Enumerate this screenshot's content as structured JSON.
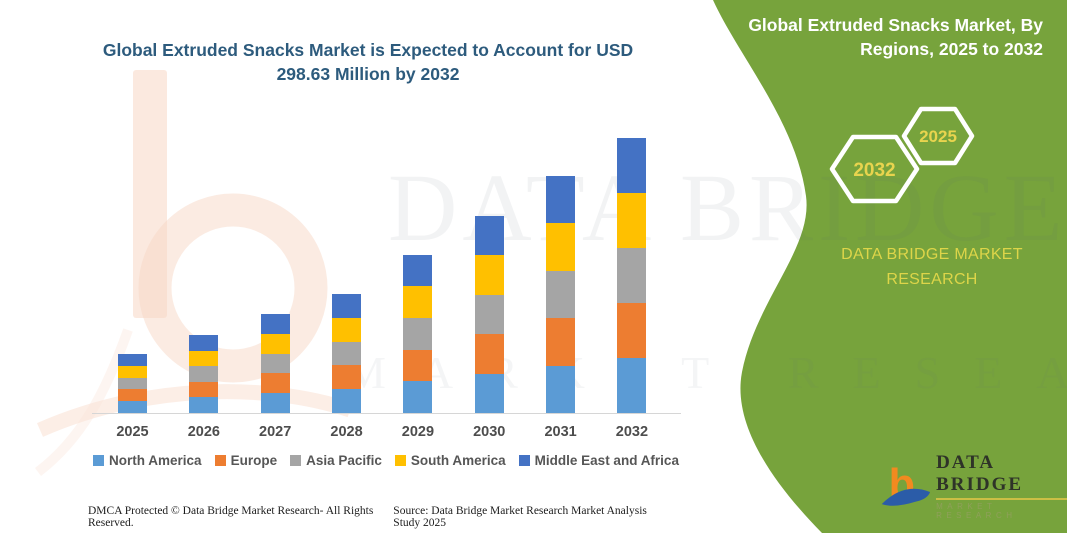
{
  "header": {
    "title": "Global Extruded Snacks Market is Expected to Account for USD 298.63 Million by 2032"
  },
  "panel": {
    "title": "Global Extruded Snacks Market, By Regions, 2025 to 2032",
    "hex_back_year": "2032",
    "hex_front_year": "2025",
    "brand_caption": "DATA BRIDGE MARKET RESEARCH"
  },
  "chart_data": {
    "type": "bar",
    "stacked": true,
    "title": "Global Extruded Snacks Market is Expected to Account for USD 298.63 Million by 2032",
    "unit": "USD Million",
    "categories": [
      "2025",
      "2026",
      "2027",
      "2028",
      "2029",
      "2030",
      "2031",
      "2032"
    ],
    "series": [
      {
        "name": "North America",
        "color": "#5B9BD5",
        "values": [
          12.8,
          16.9,
          21.5,
          25.8,
          34.3,
          42.7,
          51.4,
          59.7
        ]
      },
      {
        "name": "Europe",
        "color": "#ED7D31",
        "values": [
          12.8,
          16.9,
          21.5,
          25.8,
          34.3,
          42.7,
          51.4,
          59.7
        ]
      },
      {
        "name": "Asia Pacific",
        "color": "#A5A5A5",
        "values": [
          12.8,
          16.9,
          21.5,
          25.8,
          34.3,
          42.7,
          51.4,
          59.7
        ]
      },
      {
        "name": "South America",
        "color": "#FFC000",
        "values": [
          12.8,
          16.9,
          21.5,
          25.8,
          34.3,
          42.7,
          51.4,
          59.7
        ]
      },
      {
        "name": "Middle East and Africa",
        "color": "#4472C4",
        "values": [
          12.8,
          16.9,
          21.5,
          25.8,
          34.3,
          42.7,
          51.4,
          59.8
        ]
      }
    ],
    "totals_estimated": [
      64.0,
      84.5,
      107.3,
      129.0,
      171.3,
      213.5,
      256.9,
      298.63
    ],
    "ylim": [
      0,
      320
    ],
    "y_axis_visible": false,
    "grid": false,
    "legend_position": "bottom"
  },
  "footer": {
    "dmca": "DMCA Protected © Data Bridge Market Research-  All Rights Reserved.",
    "source": "Source: Data Bridge Market Research  Market Analysis Study 2025"
  },
  "logo": {
    "wordmark": "DATA BRIDGE",
    "sub": "MARKET RESEARCH"
  },
  "watermark": {
    "line1": "DATA BRIDGE",
    "line2": "MARKET RESEARCH"
  },
  "colors": {
    "panel_green": "#77a33c",
    "title_blue": "#2d5b7d",
    "accent_yellow": "#e8d44e",
    "legend_text": "#565656"
  }
}
